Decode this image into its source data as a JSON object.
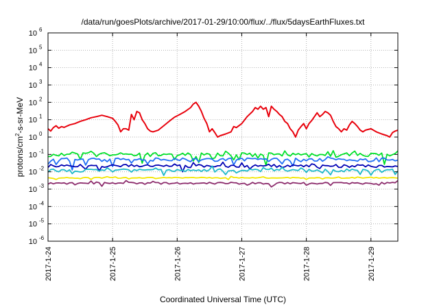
{
  "chart_data": {
    "type": "line",
    "title": "/data/run/goesPlots/archive/2017-01-29/10:00/flux/../flux/5daysEarthFluxes.txt",
    "xlabel": "Coordinated Universal Time (UTC)",
    "ylabel": {
      "prefix": "protons/cm",
      "sup": "2",
      "suffix": "-s-sr-MeV"
    },
    "yscale": "log",
    "ylim": [
      1e-06,
      1000000.0
    ],
    "y_ticks": [
      {
        "base": "10",
        "exp": "-6"
      },
      {
        "base": "10",
        "exp": "-5"
      },
      {
        "base": "10",
        "exp": "-4"
      },
      {
        "base": "10",
        "exp": "-3"
      },
      {
        "base": "10",
        "exp": "-2"
      },
      {
        "base": "10",
        "exp": "-1"
      },
      {
        "base": "10",
        "exp": "0"
      },
      {
        "base": "10",
        "exp": "1"
      },
      {
        "base": "10",
        "exp": "2"
      },
      {
        "base": "10",
        "exp": "3"
      },
      {
        "base": "10",
        "exp": "4"
      },
      {
        "base": "10",
        "exp": "5"
      },
      {
        "base": "10",
        "exp": "6"
      }
    ],
    "xlim": [
      "2017-01-24T00:00",
      "2017-01-29T10:00"
    ],
    "x_ticks": [
      "2017-1-24",
      "2017-1-25",
      "2017-1-26",
      "2017-1-27",
      "2017-1-28",
      "2017-1-29"
    ],
    "grid": true,
    "series": [
      {
        "color": "#e8000b",
        "points": [
          [
            "2017-01-24T00:00",
            3.0
          ],
          [
            "2017-01-24T01:00",
            2.2
          ],
          [
            "2017-01-24T02:00",
            3.5
          ],
          [
            "2017-01-24T03:00",
            4.5
          ],
          [
            "2017-01-24T04:00",
            3.2
          ],
          [
            "2017-01-24T05:00",
            4.0
          ],
          [
            "2017-01-24T06:00",
            3.6
          ],
          [
            "2017-01-24T08:00",
            5.0
          ],
          [
            "2017-01-24T10:00",
            6.0
          ],
          [
            "2017-01-24T12:00",
            8.0
          ],
          [
            "2017-01-24T14:00",
            10
          ],
          [
            "2017-01-24T16:00",
            13
          ],
          [
            "2017-01-24T18:00",
            15
          ],
          [
            "2017-01-24T20:00",
            18
          ],
          [
            "2017-01-24T22:00",
            15
          ],
          [
            "2017-01-25T00:00",
            12
          ],
          [
            "2017-01-25T01:00",
            8
          ],
          [
            "2017-01-25T02:00",
            5
          ],
          [
            "2017-01-25T03:00",
            2.0
          ],
          [
            "2017-01-25T04:00",
            3.0
          ],
          [
            "2017-01-25T05:00",
            3.0
          ],
          [
            "2017-01-25T06:00",
            2.5
          ],
          [
            "2017-01-25T07:00",
            20
          ],
          [
            "2017-01-25T08:00",
            10
          ],
          [
            "2017-01-25T09:00",
            30
          ],
          [
            "2017-01-25T10:00",
            25
          ],
          [
            "2017-01-25T11:00",
            10
          ],
          [
            "2017-01-25T12:00",
            6
          ],
          [
            "2017-01-25T13:00",
            3
          ],
          [
            "2017-01-25T14:00",
            2.2
          ],
          [
            "2017-01-25T15:00",
            2.0
          ],
          [
            "2017-01-25T17:00",
            2.5
          ],
          [
            "2017-01-25T19:00",
            4.5
          ],
          [
            "2017-01-25T21:00",
            8
          ],
          [
            "2017-01-25T23:00",
            14
          ],
          [
            "2017-01-26T01:00",
            20
          ],
          [
            "2017-01-26T03:00",
            30
          ],
          [
            "2017-01-26T05:00",
            50
          ],
          [
            "2017-01-26T06:00",
            80
          ],
          [
            "2017-01-26T07:00",
            100
          ],
          [
            "2017-01-26T08:00",
            60
          ],
          [
            "2017-01-26T09:00",
            30
          ],
          [
            "2017-01-26T10:00",
            12
          ],
          [
            "2017-01-26T11:00",
            6
          ],
          [
            "2017-01-26T12:00",
            2.0
          ],
          [
            "2017-01-26T13:00",
            3.0
          ],
          [
            "2017-01-26T14:00",
            1.8
          ],
          [
            "2017-01-26T15:00",
            1.0
          ],
          [
            "2017-01-26T16:00",
            1.2
          ],
          [
            "2017-01-26T18:00",
            1.5
          ],
          [
            "2017-01-26T20:00",
            2.0
          ],
          [
            "2017-01-26T21:00",
            4.0
          ],
          [
            "2017-01-26T22:00",
            3.5
          ],
          [
            "2017-01-27T00:00",
            6
          ],
          [
            "2017-01-27T02:00",
            15
          ],
          [
            "2017-01-27T04:00",
            30
          ],
          [
            "2017-01-27T05:00",
            50
          ],
          [
            "2017-01-27T06:00",
            40
          ],
          [
            "2017-01-27T07:00",
            60
          ],
          [
            "2017-01-27T08:00",
            40
          ],
          [
            "2017-01-27T09:00",
            50
          ],
          [
            "2017-01-27T10:00",
            15
          ],
          [
            "2017-01-27T11:00",
            60
          ],
          [
            "2017-01-27T12:00",
            40
          ],
          [
            "2017-01-27T13:00",
            30
          ],
          [
            "2017-01-27T14:00",
            20
          ],
          [
            "2017-01-27T15:00",
            15
          ],
          [
            "2017-01-27T16:00",
            8
          ],
          [
            "2017-01-27T17:00",
            6
          ],
          [
            "2017-01-27T18:00",
            3
          ],
          [
            "2017-01-27T19:00",
            2.0
          ],
          [
            "2017-01-27T20:00",
            1.0
          ],
          [
            "2017-01-27T21:00",
            2.5
          ],
          [
            "2017-01-27T22:00",
            4
          ],
          [
            "2017-01-27T23:00",
            6
          ],
          [
            "2017-01-28T00:00",
            3
          ],
          [
            "2017-01-28T01:00",
            6
          ],
          [
            "2017-01-28T02:00",
            9
          ],
          [
            "2017-01-28T03:00",
            15
          ],
          [
            "2017-01-28T04:00",
            25
          ],
          [
            "2017-01-28T05:00",
            15
          ],
          [
            "2017-01-28T06:00",
            20
          ],
          [
            "2017-01-28T07:00",
            30
          ],
          [
            "2017-01-28T08:00",
            25
          ],
          [
            "2017-01-28T09:00",
            18
          ],
          [
            "2017-01-28T10:00",
            8
          ],
          [
            "2017-01-28T11:00",
            4
          ],
          [
            "2017-01-28T12:00",
            3
          ],
          [
            "2017-01-28T13:00",
            2.0
          ],
          [
            "2017-01-28T14:00",
            3
          ],
          [
            "2017-01-28T15:00",
            2.5
          ],
          [
            "2017-01-28T16:00",
            5
          ],
          [
            "2017-01-28T17:00",
            8
          ],
          [
            "2017-01-28T18:00",
            6
          ],
          [
            "2017-01-28T19:00",
            4
          ],
          [
            "2017-01-28T20:00",
            2.5
          ],
          [
            "2017-01-28T21:00",
            2.0
          ],
          [
            "2017-01-28T22:00",
            2.5
          ],
          [
            "2017-01-29T00:00",
            3
          ],
          [
            "2017-01-29T02:00",
            2.0
          ],
          [
            "2017-01-29T04:00",
            1.5
          ],
          [
            "2017-01-29T06:00",
            1.2
          ],
          [
            "2017-01-29T07:00",
            1.0
          ],
          [
            "2017-01-29T08:00",
            1.8
          ],
          [
            "2017-01-29T09:00",
            2.2
          ],
          [
            "2017-01-29T10:00",
            2.5
          ]
        ]
      },
      {
        "color": "#00e02a",
        "base": 0.1,
        "jitter": 0.25,
        "spikes": 0.5,
        "seed": 11,
        "step_min": 60
      },
      {
        "color": "#1e6ef5",
        "base": 0.05,
        "jitter": 0.25,
        "spikes": 0.45,
        "seed": 23,
        "step_min": 60
      },
      {
        "color": "#0000b4",
        "base": 0.022,
        "jitter": 0.2,
        "spikes": 0.4,
        "seed": 37,
        "step_min": 60
      },
      {
        "color": "#1ab8c8",
        "base": 0.012,
        "jitter": 0.2,
        "spikes": 0.35,
        "seed": 41,
        "step_min": 60
      },
      {
        "color": "#f2e600",
        "base": 0.0045,
        "jitter": 0.06,
        "spikes": 0.15,
        "seed": 53,
        "step_min": 60
      },
      {
        "color": "#8b2a6b",
        "base": 0.0022,
        "jitter": 0.12,
        "spikes": 0.3,
        "seed": 67,
        "step_min": 60
      }
    ]
  }
}
